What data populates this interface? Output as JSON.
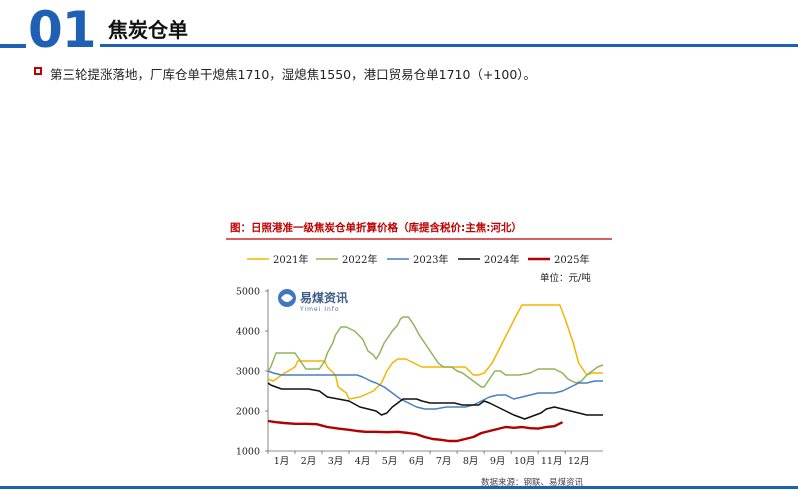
{
  "header": {
    "section_number": "01",
    "section_title": "焦炭仓单"
  },
  "bullet": {
    "text": "第三轮提涨落地，厂库仓单干熄焦1710，湿熄焦1550，港口贸易仓单1710（+100）。"
  },
  "colors": {
    "brand": "#1f5fb4",
    "title_red": "#c00000",
    "s2021": "#f2b600",
    "s2022": "#92b35a",
    "s2023": "#4a7fc1",
    "s2024": "#111111",
    "s2025": "#b00000"
  },
  "chart_data": {
    "type": "line",
    "title": "图：日照港准一级焦炭仓单折算价格（库提含税价:主焦:河北）",
    "unit_label": "单位：元/吨",
    "source": "数据来源：钢联、易煤资讯",
    "watermark": "易煤资讯",
    "watermark_sub": "Yimei Info",
    "ylim": [
      1000,
      5000
    ],
    "y_ticks": [
      "1000",
      "2000",
      "3000",
      "4000",
      "5000"
    ],
    "x_range": [
      0,
      12.4
    ],
    "x_ticks": [
      "1月",
      "2月",
      "3月",
      "4月",
      "5月",
      "6月",
      "7月",
      "8月",
      "9月",
      "10月",
      "11月",
      "12月"
    ],
    "legend_position": "top",
    "series": [
      {
        "name": "2021年",
        "color_key": "s2021",
        "x": [
          0,
          0.2,
          0.5,
          1.0,
          1.1,
          1.4,
          1.9,
          2.1,
          2.2,
          2.5,
          2.6,
          2.9,
          3.0,
          3.4,
          3.9,
          4.2,
          4.4,
          4.6,
          4.8,
          5.1,
          5.4,
          5.7,
          6.0,
          6.5,
          7.0,
          7.3,
          7.6,
          7.8,
          8.0,
          8.3,
          8.6,
          8.9,
          9.2,
          9.4,
          9.6,
          10.0,
          10.3,
          10.6,
          10.8,
          11.0,
          11.3,
          11.5,
          11.8,
          12.0,
          12.4
        ],
        "y": [
          2800,
          2750,
          2900,
          3100,
          3250,
          3250,
          3250,
          3250,
          3100,
          2900,
          2600,
          2450,
          2300,
          2350,
          2500,
          2700,
          3000,
          3200,
          3300,
          3300,
          3200,
          3100,
          3100,
          3100,
          3100,
          3100,
          2900,
          2900,
          2950,
          3200,
          3600,
          4000,
          4400,
          4650,
          4650,
          4650,
          4650,
          4650,
          4650,
          4300,
          3700,
          3200,
          2900,
          2950,
          2950
        ]
      },
      {
        "name": "2022年",
        "color_key": "s2022",
        "x": [
          0,
          0.1,
          0.3,
          1.0,
          1.2,
          1.4,
          1.9,
          2.1,
          2.2,
          2.4,
          2.5,
          2.7,
          2.9,
          3.2,
          3.5,
          3.7,
          3.9,
          4.0,
          4.1,
          4.3,
          4.6,
          4.8,
          4.9,
          5.0,
          5.2,
          5.4,
          5.6,
          5.9,
          6.1,
          6.3,
          6.5,
          6.8,
          7.0,
          7.2,
          7.5,
          7.7,
          7.9,
          8.0,
          8.2,
          8.4,
          8.6,
          8.8,
          9.0,
          9.3,
          9.7,
          10.0,
          10.3,
          10.6,
          10.9,
          11.1,
          11.4,
          11.6,
          11.8,
          12.0,
          12.2,
          12.4
        ],
        "y": [
          3000,
          3100,
          3450,
          3450,
          3250,
          3050,
          3050,
          3250,
          3450,
          3700,
          3900,
          4100,
          4100,
          4000,
          3800,
          3500,
          3400,
          3300,
          3400,
          3700,
          4000,
          4150,
          4300,
          4350,
          4350,
          4150,
          3900,
          3600,
          3400,
          3200,
          3100,
          3100,
          3000,
          2950,
          2800,
          2700,
          2600,
          2600,
          2800,
          3000,
          3000,
          2900,
          2900,
          2900,
          2950,
          3050,
          3050,
          3050,
          2950,
          2800,
          2700,
          2750,
          2900,
          3000,
          3100,
          3150
        ]
      },
      {
        "name": "2023年",
        "color_key": "s2023",
        "x": [
          0,
          0.2,
          0.5,
          1.0,
          2.0,
          2.5,
          3.0,
          3.3,
          3.5,
          3.8,
          4.0,
          4.3,
          4.6,
          4.9,
          5.2,
          5.5,
          5.8,
          6.2,
          6.6,
          7.0,
          7.3,
          7.6,
          7.9,
          8.2,
          8.5,
          8.8,
          9.1,
          9.4,
          9.7,
          10.0,
          10.3,
          10.6,
          10.9,
          11.2,
          11.5,
          11.8,
          12.1,
          12.4
        ],
        "y": [
          3000,
          2950,
          2900,
          2900,
          2900,
          2900,
          2900,
          2900,
          2850,
          2750,
          2700,
          2600,
          2450,
          2300,
          2200,
          2100,
          2050,
          2050,
          2100,
          2100,
          2100,
          2150,
          2250,
          2350,
          2400,
          2400,
          2300,
          2350,
          2400,
          2450,
          2450,
          2450,
          2500,
          2600,
          2700,
          2700,
          2750,
          2750
        ]
      },
      {
        "name": "2024年",
        "color_key": "s2024",
        "x": [
          0,
          0.1,
          0.3,
          0.5,
          1.0,
          1.5,
          1.9,
          2.2,
          2.6,
          3.0,
          3.4,
          3.7,
          4.0,
          4.2,
          4.4,
          4.6,
          4.8,
          5.0,
          5.2,
          5.5,
          5.7,
          6.0,
          6.3,
          6.6,
          6.9,
          7.2,
          7.5,
          7.8,
          8.0,
          8.2,
          8.5,
          8.8,
          9.1,
          9.3,
          9.5,
          9.7,
          9.9,
          10.1,
          10.3,
          10.6,
          10.9,
          11.2,
          11.5,
          11.8,
          12.1,
          12.4
        ],
        "y": [
          2700,
          2650,
          2600,
          2550,
          2550,
          2550,
          2500,
          2350,
          2300,
          2250,
          2100,
          2050,
          2000,
          1900,
          1950,
          2100,
          2200,
          2300,
          2300,
          2300,
          2250,
          2200,
          2200,
          2200,
          2200,
          2150,
          2150,
          2150,
          2250,
          2200,
          2100,
          2000,
          1900,
          1850,
          1800,
          1850,
          1900,
          1950,
          2050,
          2100,
          2050,
          2000,
          1950,
          1900,
          1900,
          1900
        ]
      },
      {
        "name": "2025年",
        "color_key": "s2025",
        "x": [
          0,
          0.3,
          0.6,
          1.0,
          1.4,
          1.8,
          2.2,
          2.6,
          3.0,
          3.3,
          3.6,
          4.0,
          4.4,
          4.8,
          5.2,
          5.5,
          5.8,
          6.1,
          6.4,
          6.7,
          7.0,
          7.3,
          7.6,
          7.9,
          8.2,
          8.5,
          8.8,
          9.1,
          9.4,
          9.7,
          10.0,
          10.3,
          10.6,
          10.9
        ],
        "y": [
          1750,
          1720,
          1700,
          1680,
          1680,
          1670,
          1600,
          1560,
          1530,
          1500,
          1480,
          1480,
          1470,
          1480,
          1450,
          1420,
          1350,
          1300,
          1280,
          1250,
          1250,
          1300,
          1350,
          1450,
          1500,
          1550,
          1600,
          1580,
          1600,
          1570,
          1560,
          1600,
          1620,
          1720
        ]
      }
    ]
  }
}
